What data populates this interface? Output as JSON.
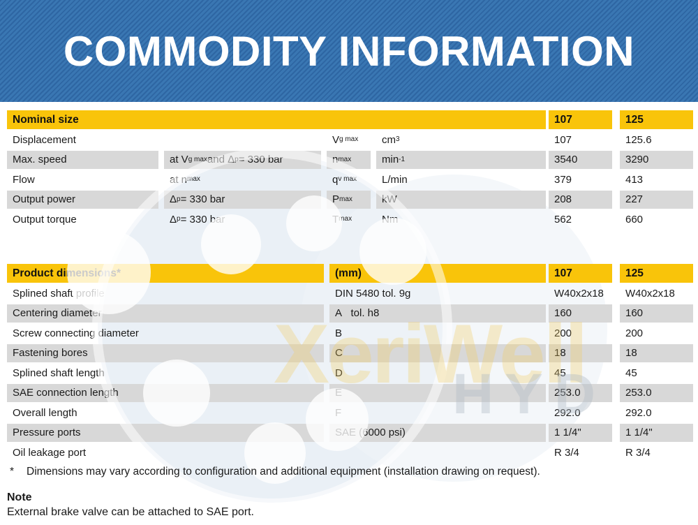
{
  "banner": {
    "title": "COMMODITY INFORMATION"
  },
  "watermark": {
    "line1": "XeriWell",
    "line2": "HYD"
  },
  "colors": {
    "banner_blue": "#3572ae",
    "banner_stripe": "#2e66a3",
    "header_yellow": "#f9c40a",
    "row_gray": "#d8d8d8"
  },
  "nominal_table": {
    "title": "Nominal size",
    "col_107": "107",
    "col_125": "125",
    "rows": [
      {
        "label": "Displacement",
        "condition": "",
        "symbol": "V<sub>g max</sub>",
        "unit": "cm<sup>3</sup>",
        "v107": "107",
        "v125": "125.6"
      },
      {
        "label": "Max. speed",
        "condition": "at V<sub>g max</sub> and Δ<sub>p</sub> = 330 bar",
        "symbol": "n<sub>max</sub>",
        "unit": "min<sup>-1</sup>",
        "v107": "3540",
        "v125": "3290"
      },
      {
        "label": "Flow",
        "condition": "at n<sub>max</sub>",
        "symbol": "q<sub>v max</sub>",
        "unit": "L/min",
        "v107": "379",
        "v125": "413"
      },
      {
        "label": "Output power",
        "condition": "Δ<sub>p</sub> = 330 bar",
        "symbol": "P<sub>max</sub>",
        "unit": "kW",
        "v107": "208",
        "v125": "227"
      },
      {
        "label": "Output torque",
        "condition": "Δ<sub>p</sub> = 330 bar",
        "symbol": "T<sub>max</sub>",
        "unit": "Nm",
        "v107": "562",
        "v125": "660"
      }
    ]
  },
  "dimensions_table": {
    "title": "Product dimensions*",
    "unit_header": "(mm)",
    "col_107": "107",
    "col_125": "125",
    "rows": [
      {
        "label": "Splined shaft profile",
        "spec": "DIN 5480 tol. 9g",
        "v107": "W40x2x18",
        "v125": "W40x2x18"
      },
      {
        "label": "Centering diameter",
        "spec": "A&nbsp;&nbsp; tol. h8",
        "v107": "160",
        "v125": "160"
      },
      {
        "label": "Screw connecting diameter",
        "spec": "B",
        "v107": "200",
        "v125": "200"
      },
      {
        "label": "Fastening bores",
        "spec": "C",
        "v107": "18",
        "v125": "18"
      },
      {
        "label": "Splined shaft length",
        "spec": "D",
        "v107": "45",
        "v125": "45"
      },
      {
        "label": "SAE connection length",
        "spec": "E",
        "v107": "253.0",
        "v125": "253.0"
      },
      {
        "label": "Overall length",
        "spec": "F",
        "v107": "292.0",
        "v125": "292.0"
      },
      {
        "label": "Pressure ports",
        "spec": "SAE (6000 psi)",
        "v107": "1 1/4\"",
        "v125": "1 1/4\""
      },
      {
        "label": "Oil leakage port",
        "spec": "",
        "v107": "R 3/4",
        "v125": "R 3/4"
      }
    ]
  },
  "footnote": {
    "marker": "*",
    "text": "Dimensions may vary according to configuration and additional equipment (installation drawing on request)."
  },
  "note": {
    "title": "Note",
    "text": "External brake valve can be attached to SAE port."
  }
}
